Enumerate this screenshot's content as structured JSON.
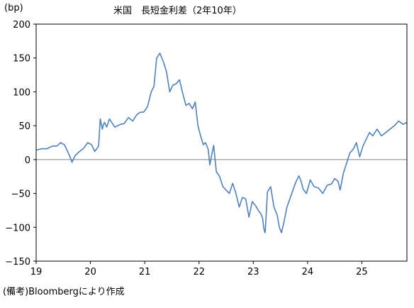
{
  "unit_label": "(bp)",
  "title": "米国　長短金利差（2年10年）",
  "source_note": "(備考)Bloombergにより作成",
  "colors": {
    "series_line": "#4f81bd",
    "zero_line": "#808080",
    "frame": "#000000"
  },
  "chart_data": {
    "type": "line",
    "title": "米国　長短金利差（2年10年）",
    "ylabel": "(bp)",
    "xlabel": "",
    "ylim": [
      -150,
      200
    ],
    "xlim": [
      2019,
      2025.83
    ],
    "y_ticks": [
      200,
      150,
      100,
      50,
      0,
      -50,
      -100,
      -150
    ],
    "x_ticks": [
      {
        "value": 2019,
        "label": "19"
      },
      {
        "value": 2020,
        "label": "20"
      },
      {
        "value": 2021,
        "label": "21"
      },
      {
        "value": 2022,
        "label": "22"
      },
      {
        "value": 2023,
        "label": "23"
      },
      {
        "value": 2024,
        "label": "24"
      },
      {
        "value": 2025,
        "label": "25"
      }
    ],
    "grid": false,
    "legend": "none",
    "series": [
      {
        "x": [
          2019.0,
          2019.1,
          2019.2,
          2019.3,
          2019.38,
          2019.45,
          2019.52,
          2019.58,
          2019.63,
          2019.66,
          2019.72,
          2019.8,
          2019.88,
          2019.95,
          2020.02,
          2020.08,
          2020.15,
          2020.18,
          2020.22,
          2020.24,
          2020.26,
          2020.3,
          2020.35,
          2020.45,
          2020.55,
          2020.62,
          2020.7,
          2020.78,
          2020.85,
          2020.92,
          2020.98,
          2021.05,
          2021.12,
          2021.17,
          2021.22,
          2021.28,
          2021.34,
          2021.4,
          2021.46,
          2021.52,
          2021.58,
          2021.64,
          2021.7,
          2021.76,
          2021.82,
          2021.88,
          2021.93,
          2021.98,
          2022.03,
          2022.08,
          2022.12,
          2022.17,
          2022.2,
          2022.23,
          2022.27,
          2022.32,
          2022.38,
          2022.44,
          2022.5,
          2022.56,
          2022.62,
          2022.68,
          2022.74,
          2022.8,
          2022.86,
          2022.92,
          2022.98,
          2023.04,
          2023.1,
          2023.14,
          2023.17,
          2023.2,
          2023.22,
          2023.26,
          2023.32,
          2023.38,
          2023.44,
          2023.48,
          2023.52,
          2023.56,
          2023.62,
          2023.7,
          2023.78,
          2023.84,
          2023.88,
          2023.92,
          2023.98,
          2024.05,
          2024.12,
          2024.2,
          2024.28,
          2024.36,
          2024.44,
          2024.5,
          2024.56,
          2024.6,
          2024.66,
          2024.72,
          2024.78,
          2024.84,
          2024.9,
          2024.96,
          2025.02,
          2025.08,
          2025.14,
          2025.2,
          2025.28,
          2025.36,
          2025.44,
          2025.52,
          2025.6,
          2025.68,
          2025.76,
          2025.83
        ],
        "values": [
          14,
          16,
          16,
          20,
          20,
          25,
          22,
          12,
          3,
          -4,
          6,
          12,
          17,
          25,
          22,
          12,
          20,
          60,
          45,
          52,
          55,
          48,
          60,
          48,
          52,
          53,
          62,
          57,
          66,
          70,
          70,
          78,
          100,
          108,
          150,
          157,
          145,
          130,
          100,
          110,
          112,
          118,
          98,
          80,
          83,
          75,
          85,
          50,
          35,
          22,
          25,
          15,
          -8,
          5,
          21,
          -18,
          -25,
          -40,
          -45,
          -50,
          -35,
          -50,
          -70,
          -56,
          -58,
          -85,
          -62,
          -68,
          -76,
          -80,
          -86,
          -104,
          -108,
          -48,
          -40,
          -70,
          -82,
          -100,
          -108,
          -94,
          -70,
          -52,
          -34,
          -24,
          -32,
          -44,
          -50,
          -30,
          -40,
          -42,
          -50,
          -38,
          -36,
          -28,
          -32,
          -45,
          -20,
          -5,
          10,
          15,
          25,
          4,
          20,
          30,
          40,
          35,
          45,
          35,
          40,
          45,
          50,
          57,
          52,
          55
        ]
      }
    ]
  }
}
